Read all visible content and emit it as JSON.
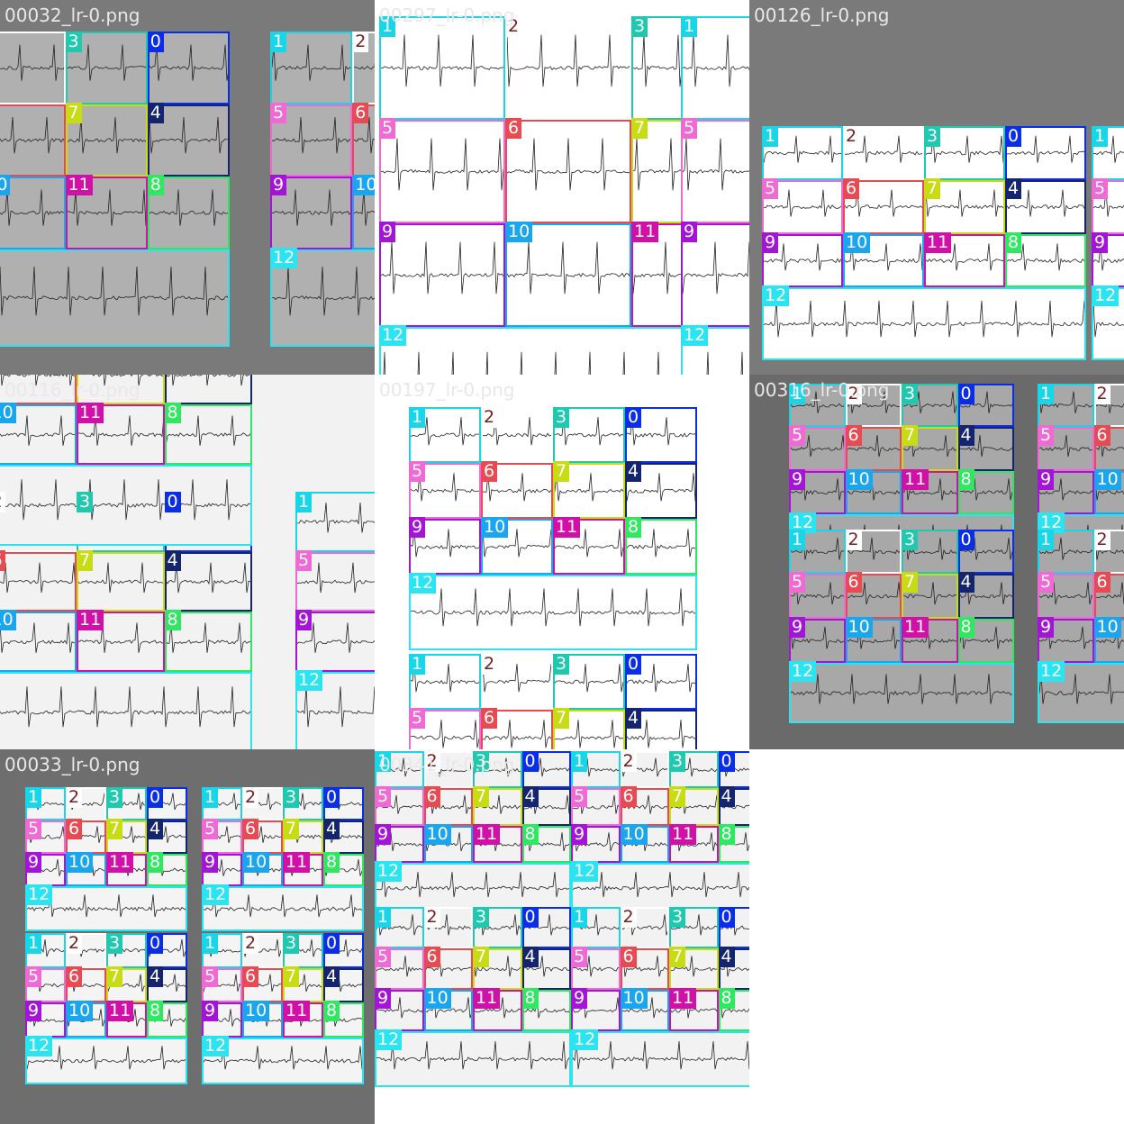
{
  "tiles": [
    {
      "id": "t1",
      "name": "00032_lr-0.png",
      "bg": "#ffffff",
      "paper": "#b0b0b0",
      "frame": "#7a7a7a"
    },
    {
      "id": "t2",
      "name": "00297_lr-0.png",
      "bg": "#ffffff",
      "paper": "#ffffff",
      "frame": "#ffffff"
    },
    {
      "id": "t3",
      "name": "00126_lr-0.png",
      "bg": "#ffffff",
      "paper": "#ffffff",
      "frame": "#7a7a7a"
    },
    {
      "id": "t4",
      "name": "00116_lr-0.png",
      "bg": "#ffffff",
      "paper": "#f2f2f2",
      "frame": "#f2f2f2"
    },
    {
      "id": "t5",
      "name": "00197_lr-0.png",
      "bg": "#ffffff",
      "paper": "#ffffff",
      "frame": "#ffffff"
    },
    {
      "id": "t6",
      "name": "00316_lr-0.png",
      "bg": "#ffffff",
      "paper": "#a8a8a8",
      "frame": "#6a6a6a"
    },
    {
      "id": "t7",
      "name": "00033_lr-0.png",
      "bg": "#ffffff",
      "paper": "#f4f4f4",
      "frame": "#6e6e6e"
    },
    {
      "id": "t8",
      "name": "00341_lr-0.png",
      "bg": "#ffffff",
      "paper": "#f2f2f2",
      "frame": "#ffffff"
    }
  ],
  "classes": [
    {
      "id": "0",
      "color": "#0a2de8",
      "dark": false
    },
    {
      "id": "1",
      "color": "#18d6e8",
      "dark": false
    },
    {
      "id": "2",
      "color": "#ffffff",
      "dark": true
    },
    {
      "id": "3",
      "color": "#1ec9b0",
      "dark": false
    },
    {
      "id": "4",
      "color": "#14246e",
      "dark": false
    },
    {
      "id": "5",
      "color": "#f06ad6",
      "dark": false
    },
    {
      "id": "6",
      "color": "#e84a52",
      "dark": false
    },
    {
      "id": "7",
      "color": "#c8dc14",
      "dark": false
    },
    {
      "id": "8",
      "color": "#2ee860",
      "dark": false
    },
    {
      "id": "9",
      "color": "#a414d6",
      "dark": false
    },
    {
      "id": "10",
      "color": "#1aa6ee",
      "dark": false
    },
    {
      "id": "11",
      "color": "#d010a6",
      "dark": false
    },
    {
      "id": "12",
      "color": "#2ae4f2",
      "dark": false
    }
  ]
}
